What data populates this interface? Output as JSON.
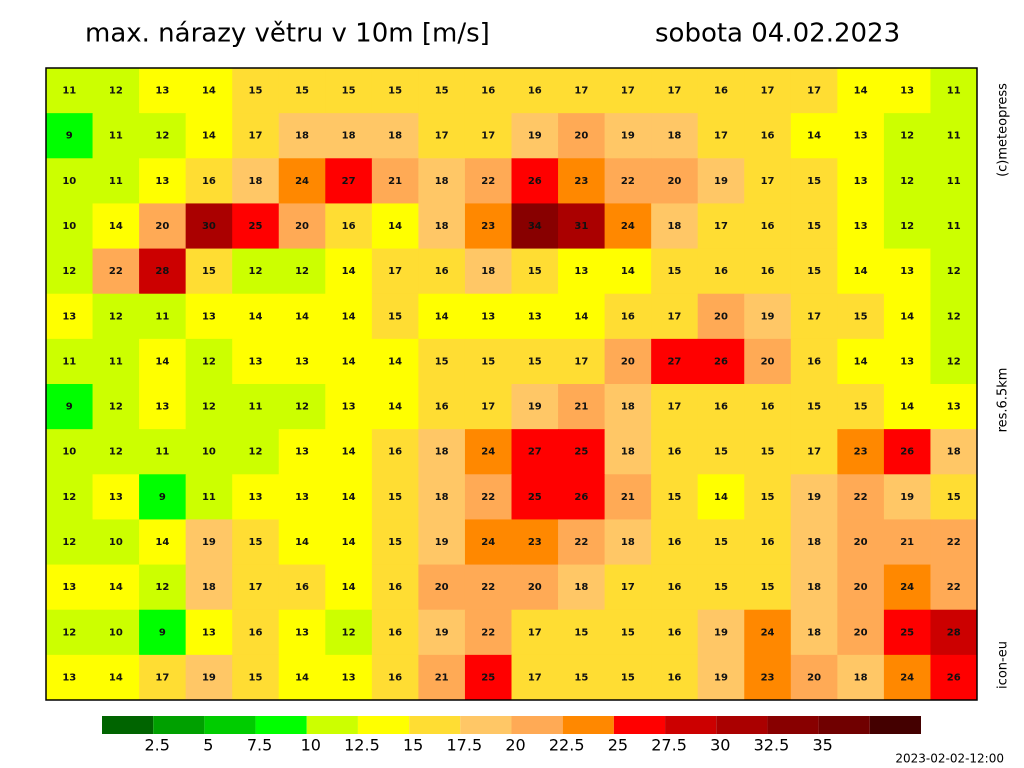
{
  "map": {
    "title": "max. nárazy větru v 10m [m/s]",
    "date": "sobota 04.02.2023",
    "copyright": "(c)meteopress",
    "resolution": "res.6.5km",
    "model": "icon-eu",
    "timestamp": "2023-02-02-12:00",
    "grid": [
      [
        11,
        12,
        13,
        14,
        15,
        15,
        15,
        15,
        15,
        16,
        16,
        17,
        17,
        17,
        16,
        17,
        17,
        14,
        13,
        11
      ],
      [
        9,
        11,
        12,
        14,
        17,
        18,
        18,
        18,
        17,
        17,
        19,
        20,
        19,
        18,
        17,
        16,
        14,
        13,
        12,
        11
      ],
      [
        10,
        11,
        13,
        16,
        18,
        24,
        27,
        21,
        18,
        22,
        26,
        23,
        22,
        20,
        19,
        17,
        15,
        13,
        12,
        11
      ],
      [
        10,
        14,
        20,
        30,
        25,
        20,
        16,
        14,
        18,
        23,
        34,
        31,
        24,
        18,
        17,
        16,
        15,
        13,
        12,
        11
      ],
      [
        12,
        22,
        28,
        15,
        12,
        12,
        14,
        17,
        16,
        18,
        15,
        13,
        14,
        15,
        16,
        16,
        15,
        14,
        13,
        12
      ],
      [
        13,
        12,
        11,
        13,
        14,
        14,
        14,
        15,
        14,
        13,
        13,
        14,
        16,
        17,
        20,
        19,
        17,
        15,
        14,
        12
      ],
      [
        11,
        11,
        14,
        12,
        13,
        13,
        14,
        14,
        15,
        15,
        15,
        17,
        20,
        27,
        26,
        20,
        16,
        14,
        13,
        12
      ],
      [
        9,
        12,
        13,
        12,
        11,
        12,
        13,
        14,
        16,
        17,
        19,
        21,
        18,
        17,
        16,
        16,
        15,
        15,
        14,
        13
      ],
      [
        10,
        12,
        11,
        10,
        12,
        13,
        14,
        16,
        18,
        24,
        27,
        25,
        18,
        16,
        15,
        15,
        17,
        23,
        26,
        18
      ],
      [
        12,
        13,
        9,
        11,
        13,
        13,
        14,
        15,
        18,
        22,
        25,
        26,
        21,
        15,
        14,
        15,
        19,
        22,
        19,
        15
      ],
      [
        12,
        10,
        14,
        19,
        15,
        14,
        14,
        15,
        19,
        24,
        23,
        22,
        18,
        16,
        15,
        16,
        18,
        20,
        21,
        22
      ],
      [
        13,
        14,
        12,
        18,
        17,
        16,
        14,
        16,
        20,
        22,
        20,
        18,
        17,
        16,
        15,
        15,
        18,
        20,
        24,
        22
      ],
      [
        12,
        10,
        9,
        13,
        16,
        13,
        12,
        16,
        19,
        22,
        17,
        15,
        15,
        16,
        19,
        24,
        18,
        20,
        25,
        28
      ],
      [
        13,
        14,
        17,
        19,
        15,
        14,
        13,
        16,
        21,
        25,
        17,
        15,
        15,
        16,
        19,
        23,
        20,
        18,
        24,
        26
      ]
    ],
    "colorbar": {
      "lim": [
        0,
        40
      ],
      "colors": [
        "#006400",
        "#00a000",
        "#00cc00",
        "#00ff00",
        "#ccff00",
        "#ffff00",
        "#ffdd33",
        "#ffc766",
        "#ffaa55",
        "#ff8800",
        "#ff0000",
        "#cc0000",
        "#aa0000",
        "#880000",
        "#700000",
        "#440000"
      ],
      "ticks": [
        2.5,
        5,
        7.5,
        10,
        12.5,
        15,
        17.5,
        20,
        22.5,
        25,
        27.5,
        30,
        32.5,
        35
      ]
    }
  }
}
